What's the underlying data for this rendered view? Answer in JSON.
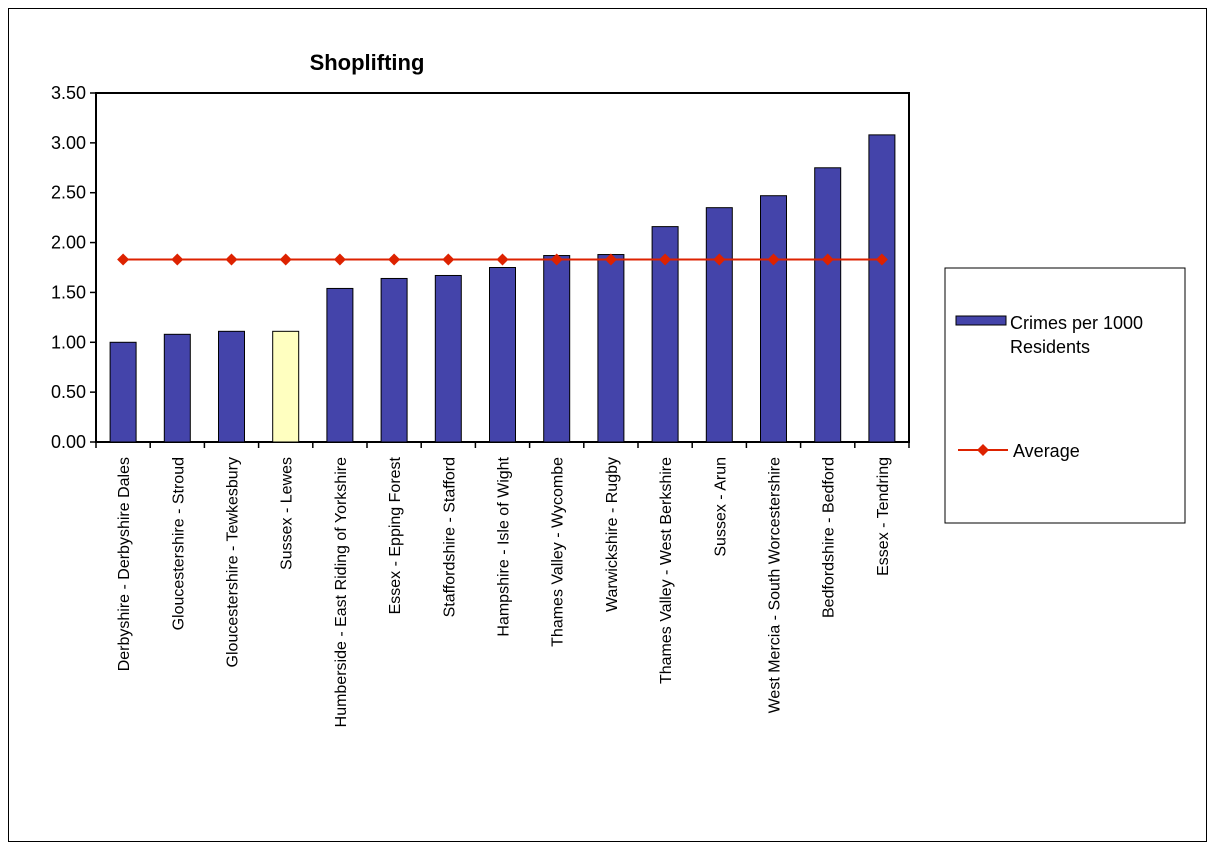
{
  "chart_data": {
    "type": "bar",
    "title": "Shoplifting",
    "xlabel": "",
    "ylabel": "",
    "ylim": [
      0,
      3.5
    ],
    "yticks": [
      "0.00",
      "0.50",
      "1.00",
      "1.50",
      "2.00",
      "2.50",
      "3.00",
      "3.50"
    ],
    "grid": false,
    "legend_position": "right",
    "categories": [
      "Derbyshire - Derbyshire Dales",
      "Gloucestershire - Stroud",
      "Gloucestershire - Tewkesbury",
      "Sussex - Lewes",
      "Humberside - East Riding of Yorkshire",
      "Essex - Epping Forest",
      "Staffordshire - Stafford",
      "Hampshire - Isle of Wight",
      "Thames Valley - Wycombe",
      "Warwickshire - Rugby",
      "Thames Valley - West Berkshire",
      "Sussex - Arun",
      "West Mercia - South Worcestershire",
      "Bedfordshire - Bedford",
      "Essex - Tendring"
    ],
    "highlight_category": "Sussex - Lewes",
    "series": [
      {
        "name": "Crimes per 1000 Residents",
        "type": "bar",
        "color": "#4444aa",
        "highlight_color": "#ffffc0",
        "values": [
          1.0,
          1.08,
          1.11,
          1.11,
          1.54,
          1.64,
          1.67,
          1.75,
          1.87,
          1.88,
          2.16,
          2.35,
          2.47,
          2.75,
          3.08
        ]
      },
      {
        "name": "Average",
        "type": "line",
        "color": "#dd2200",
        "values": [
          1.83,
          1.83,
          1.83,
          1.83,
          1.83,
          1.83,
          1.83,
          1.83,
          1.83,
          1.83,
          1.83,
          1.83,
          1.83,
          1.83,
          1.83
        ]
      }
    ],
    "legend": [
      {
        "label_lines": [
          "Crimes per 1000",
          "Residents"
        ],
        "marker": "bar"
      },
      {
        "label_lines": [
          "Average"
        ],
        "marker": "line-diamond"
      }
    ]
  }
}
